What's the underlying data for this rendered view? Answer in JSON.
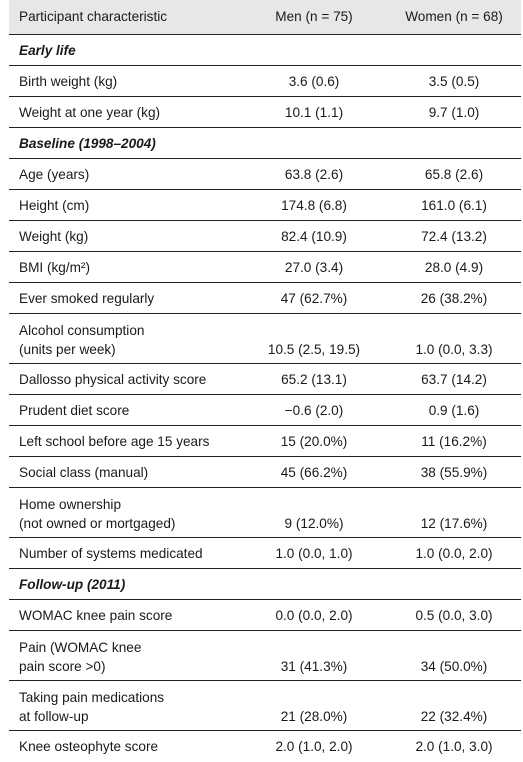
{
  "header": {
    "col1": "Participant characteristic",
    "col2": "Men (n = 75)",
    "col3": "Women (n = 68)"
  },
  "rows": [
    {
      "type": "section",
      "label": "Early life"
    },
    {
      "type": "row",
      "label": "Birth weight (kg)",
      "men": "3.6 (0.6)",
      "women": "3.5 (0.5)"
    },
    {
      "type": "row",
      "label": "Weight at one year (kg)",
      "men": "10.1 (1.1)",
      "women": "9.7 (1.0)"
    },
    {
      "type": "section",
      "label": "Baseline (1998–2004)"
    },
    {
      "type": "row",
      "label": "Age (years)",
      "men": "63.8 (2.6)",
      "women": "65.8 (2.6)"
    },
    {
      "type": "row",
      "label": "Height (cm)",
      "men": "174.8 (6.8)",
      "women": "161.0 (6.1)"
    },
    {
      "type": "row",
      "label": "Weight (kg)",
      "men": "82.4 (10.9)",
      "women": "72.4 (13.2)"
    },
    {
      "type": "row",
      "label": "BMI (kg/m²)",
      "men": "27.0 (3.4)",
      "women": "28.0 (4.9)"
    },
    {
      "type": "row",
      "label": "Ever smoked regularly",
      "men": "47 (62.7%)",
      "women": "26 (38.2%)"
    },
    {
      "type": "row2",
      "label": "Alcohol consumption\n(units per week)",
      "men": "10.5 (2.5, 19.5)",
      "women": "1.0 (0.0, 3.3)"
    },
    {
      "type": "row",
      "label": "Dallosso physical activity score",
      "men": "65.2 (13.1)",
      "women": "63.7 (14.2)"
    },
    {
      "type": "row",
      "label": "Prudent diet score",
      "men": "−0.6 (2.0)",
      "women": "0.9 (1.6)"
    },
    {
      "type": "row",
      "label": "Left school before age 15 years",
      "men": "15 (20.0%)",
      "women": "11 (16.2%)"
    },
    {
      "type": "row",
      "label": "Social class (manual)",
      "men": "45 (66.2%)",
      "women": "38 (55.9%)"
    },
    {
      "type": "row2",
      "label": "Home ownership\n(not owned or mortgaged)",
      "men": "9 (12.0%)",
      "women": "12 (17.6%)"
    },
    {
      "type": "row",
      "label": "Number of systems medicated",
      "men": "1.0 (0.0, 1.0)",
      "women": "1.0 (0.0, 2.0)"
    },
    {
      "type": "section",
      "label": "Follow-up (2011)"
    },
    {
      "type": "row",
      "label": "WOMAC knee pain score",
      "men": "0.0 (0.0, 2.0)",
      "women": "0.5 (0.0, 3.0)"
    },
    {
      "type": "row2",
      "label": "Pain (WOMAC knee\npain score >0)",
      "men": "31 (41.3%)",
      "women": "34 (50.0%)"
    },
    {
      "type": "row2",
      "label": "Taking pain medications\nat follow-up",
      "men": "21 (28.0%)",
      "women": "22 (32.4%)"
    },
    {
      "type": "row",
      "label": "Knee osteophyte score",
      "men": "2.0 (1.0, 2.0)",
      "women": "2.0 (1.0, 3.0)"
    }
  ]
}
